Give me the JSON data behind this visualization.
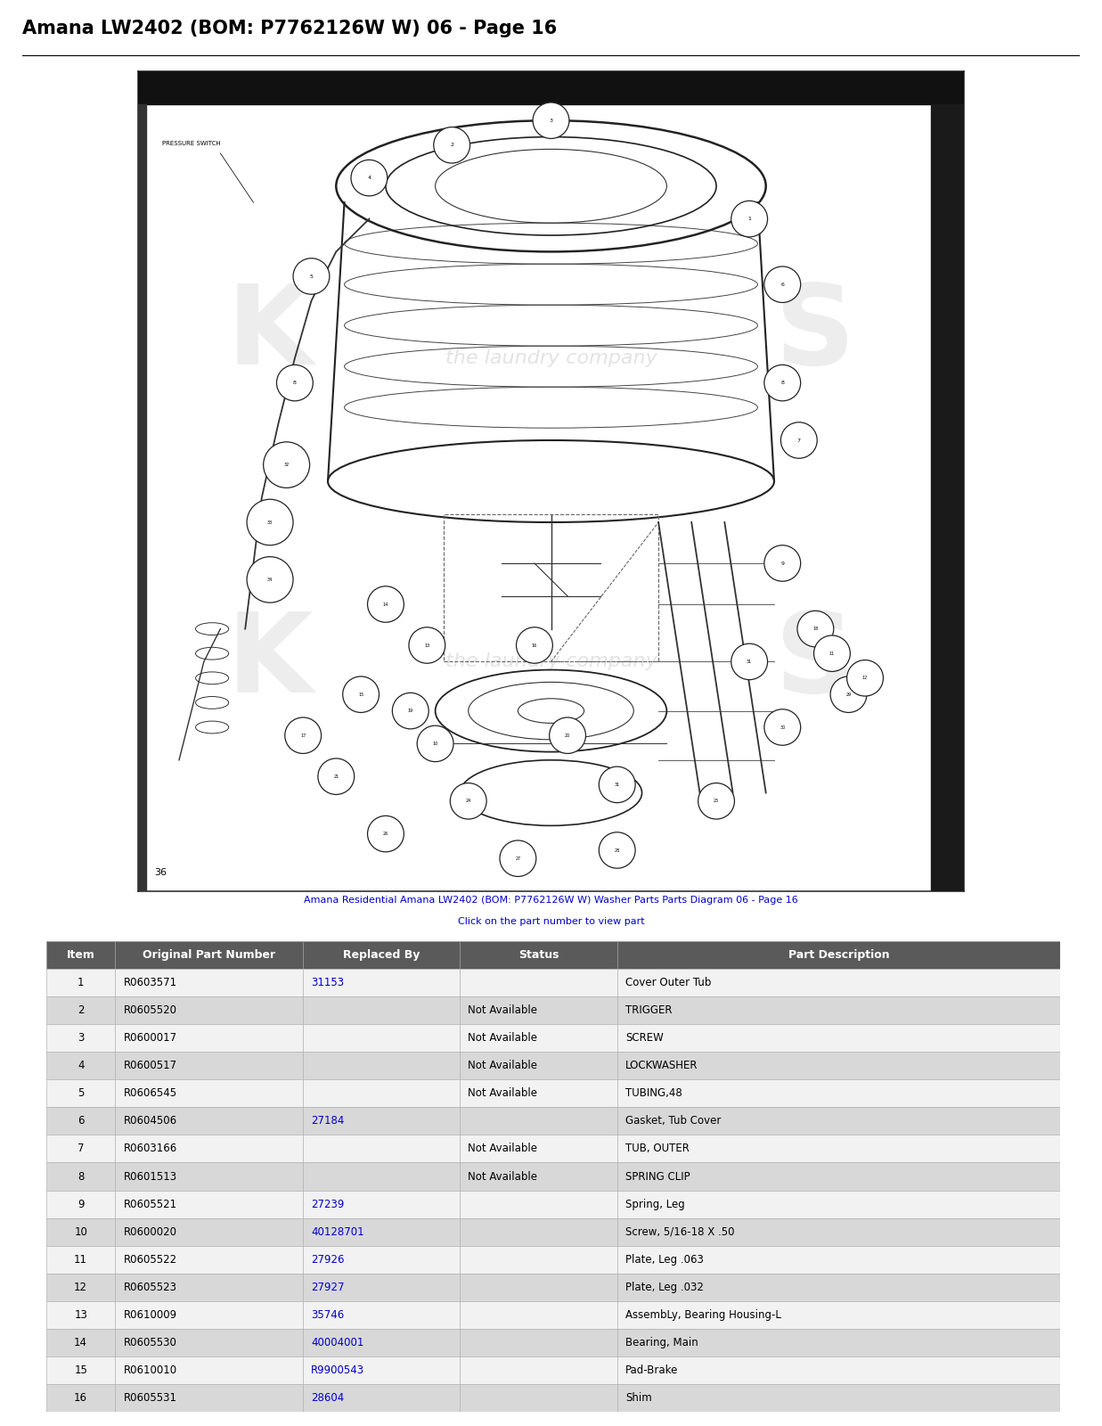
{
  "title": "Amana LW2402 (BOM: P7762126W W) 06 - Page 16",
  "subtitle_link": "Amana Residential Amana LW2402 (BOM: P7762126W W) Washer Parts Parts Diagram 06 - Page 16",
  "subtitle_link2": "Click on the part number to view part",
  "bg_color": "#ffffff",
  "title_fontsize": 15,
  "table_header": [
    "Item",
    "Original Part Number",
    "Replaced By",
    "Status",
    "Part Description"
  ],
  "table_header_bg": "#5a5a5a",
  "table_header_fg": "#ffffff",
  "table_row_alt_bg": "#d8d8d8",
  "table_row_bg": "#f2f2f2",
  "table_rows": [
    [
      "1",
      "R0603571",
      "31153",
      "",
      "Cover Outer Tub"
    ],
    [
      "2",
      "R0605520",
      "",
      "Not Available",
      "TRIGGER"
    ],
    [
      "3",
      "R0600017",
      "",
      "Not Available",
      "SCREW"
    ],
    [
      "4",
      "R0600517",
      "",
      "Not Available",
      "LOCKWASHER"
    ],
    [
      "5",
      "R0606545",
      "",
      "Not Available",
      "TUBING,48"
    ],
    [
      "6",
      "R0604506",
      "27184",
      "",
      "Gasket, Tub Cover"
    ],
    [
      "7",
      "R0603166",
      "",
      "Not Available",
      "TUB, OUTER"
    ],
    [
      "8",
      "R0601513",
      "",
      "Not Available",
      "SPRING CLIP"
    ],
    [
      "9",
      "R0605521",
      "27239",
      "",
      "Spring, Leg"
    ],
    [
      "10",
      "R0600020",
      "40128701",
      "",
      "Screw, 5/16-18 X .50"
    ],
    [
      "11",
      "R0605522",
      "27926",
      "",
      "Plate, Leg .063"
    ],
    [
      "12",
      "R0605523",
      "27927",
      "",
      "Plate, Leg .032"
    ],
    [
      "13",
      "R0610009",
      "35746",
      "",
      "AssembLy, Bearing Housing-L"
    ],
    [
      "14",
      "R0605530",
      "40004001",
      "",
      "Bearing, Main"
    ],
    [
      "15",
      "R0610010",
      "R9900543",
      "",
      "Pad-Brake"
    ],
    [
      "16",
      "R0605531",
      "28604",
      "",
      "Shim"
    ]
  ],
  "link_color": "#0000cc",
  "table_text_color": "#000000",
  "table_fontsize": 9,
  "diagram_border_color": "#000000",
  "diagram_bg": "#ffffff",
  "watermark_color": "#bbbbbb"
}
